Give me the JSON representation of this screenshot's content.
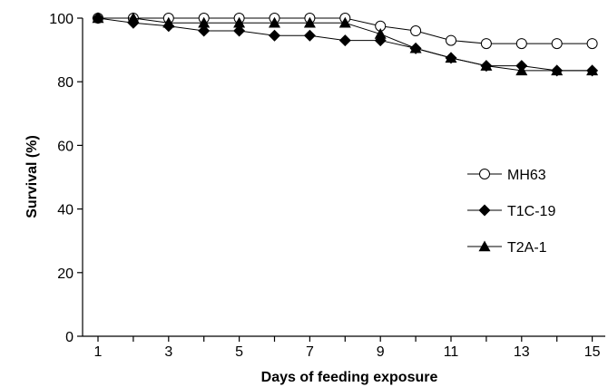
{
  "chart_data": {
    "type": "line",
    "xlabel": "Days of feeding exposure",
    "ylabel": "Survival (%)",
    "xlim": [
      1,
      15
    ],
    "ylim": [
      0,
      100
    ],
    "x_ticks": [
      "1",
      "3",
      "5",
      "7",
      "9",
      "11",
      "13",
      "15"
    ],
    "y_ticks": [
      "0",
      "20",
      "40",
      "60",
      "80",
      "100"
    ],
    "grid": false,
    "legend_position": "right",
    "x": [
      1,
      2,
      3,
      4,
      5,
      6,
      7,
      8,
      9,
      10,
      11,
      12,
      13,
      14,
      15
    ],
    "series": [
      {
        "name": "MH63",
        "marker": "open-circle",
        "values": [
          100,
          100,
          100,
          100,
          100,
          100,
          100,
          100,
          97.5,
          96,
          93,
          92,
          92,
          92,
          92
        ]
      },
      {
        "name": "T1C-19",
        "marker": "diamond",
        "values": [
          100,
          98.5,
          97.5,
          96,
          96,
          94.5,
          94.5,
          93,
          93,
          90.5,
          87.5,
          85,
          85,
          83.5,
          83.5
        ]
      },
      {
        "name": "T2A-1",
        "marker": "triangle",
        "values": [
          100,
          100,
          98.5,
          98.5,
          98.5,
          98.5,
          98.5,
          98.5,
          95,
          90.5,
          87.5,
          85,
          83.5,
          83.5,
          83.5
        ]
      }
    ]
  }
}
